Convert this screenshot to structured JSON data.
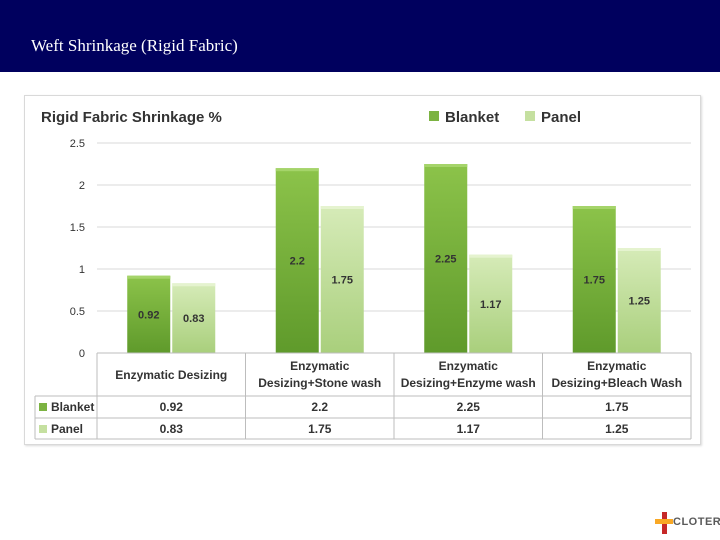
{
  "slide": {
    "title": "Weft Shrinkage (Rigid Fabric)"
  },
  "colors": {
    "header_bg": "#00005e",
    "blanket": "#7cb342",
    "panel": "#c5e0a0",
    "text": "#333333"
  },
  "logo": {
    "text": "CLOTER"
  },
  "chart_data": {
    "type": "bar",
    "title": "Rigid Fabric Shrinkage %",
    "categories": [
      [
        "Enzymatic Desizing"
      ],
      [
        "Enzymatic",
        "Desizing+Stone wash"
      ],
      [
        "Enzymatic",
        "Desizing+Enzyme wash"
      ],
      [
        "Enzymatic",
        "Desizing+Bleach Wash"
      ]
    ],
    "series": [
      {
        "name": "Blanket",
        "values": [
          0.92,
          2.2,
          2.25,
          1.75
        ],
        "labels": [
          "0.92",
          "2.2",
          "2.25",
          "1.75"
        ]
      },
      {
        "name": "Panel",
        "values": [
          0.83,
          1.75,
          1.17,
          1.25
        ],
        "labels": [
          "0.83",
          "1.75",
          "1.17",
          "1.25"
        ]
      }
    ],
    "yticks": [
      "0",
      "0.5",
      "1",
      "1.5",
      "2",
      "2.5"
    ],
    "ylim": [
      0,
      2.5
    ],
    "grid": true,
    "legend": "top-right",
    "data_table": true
  }
}
